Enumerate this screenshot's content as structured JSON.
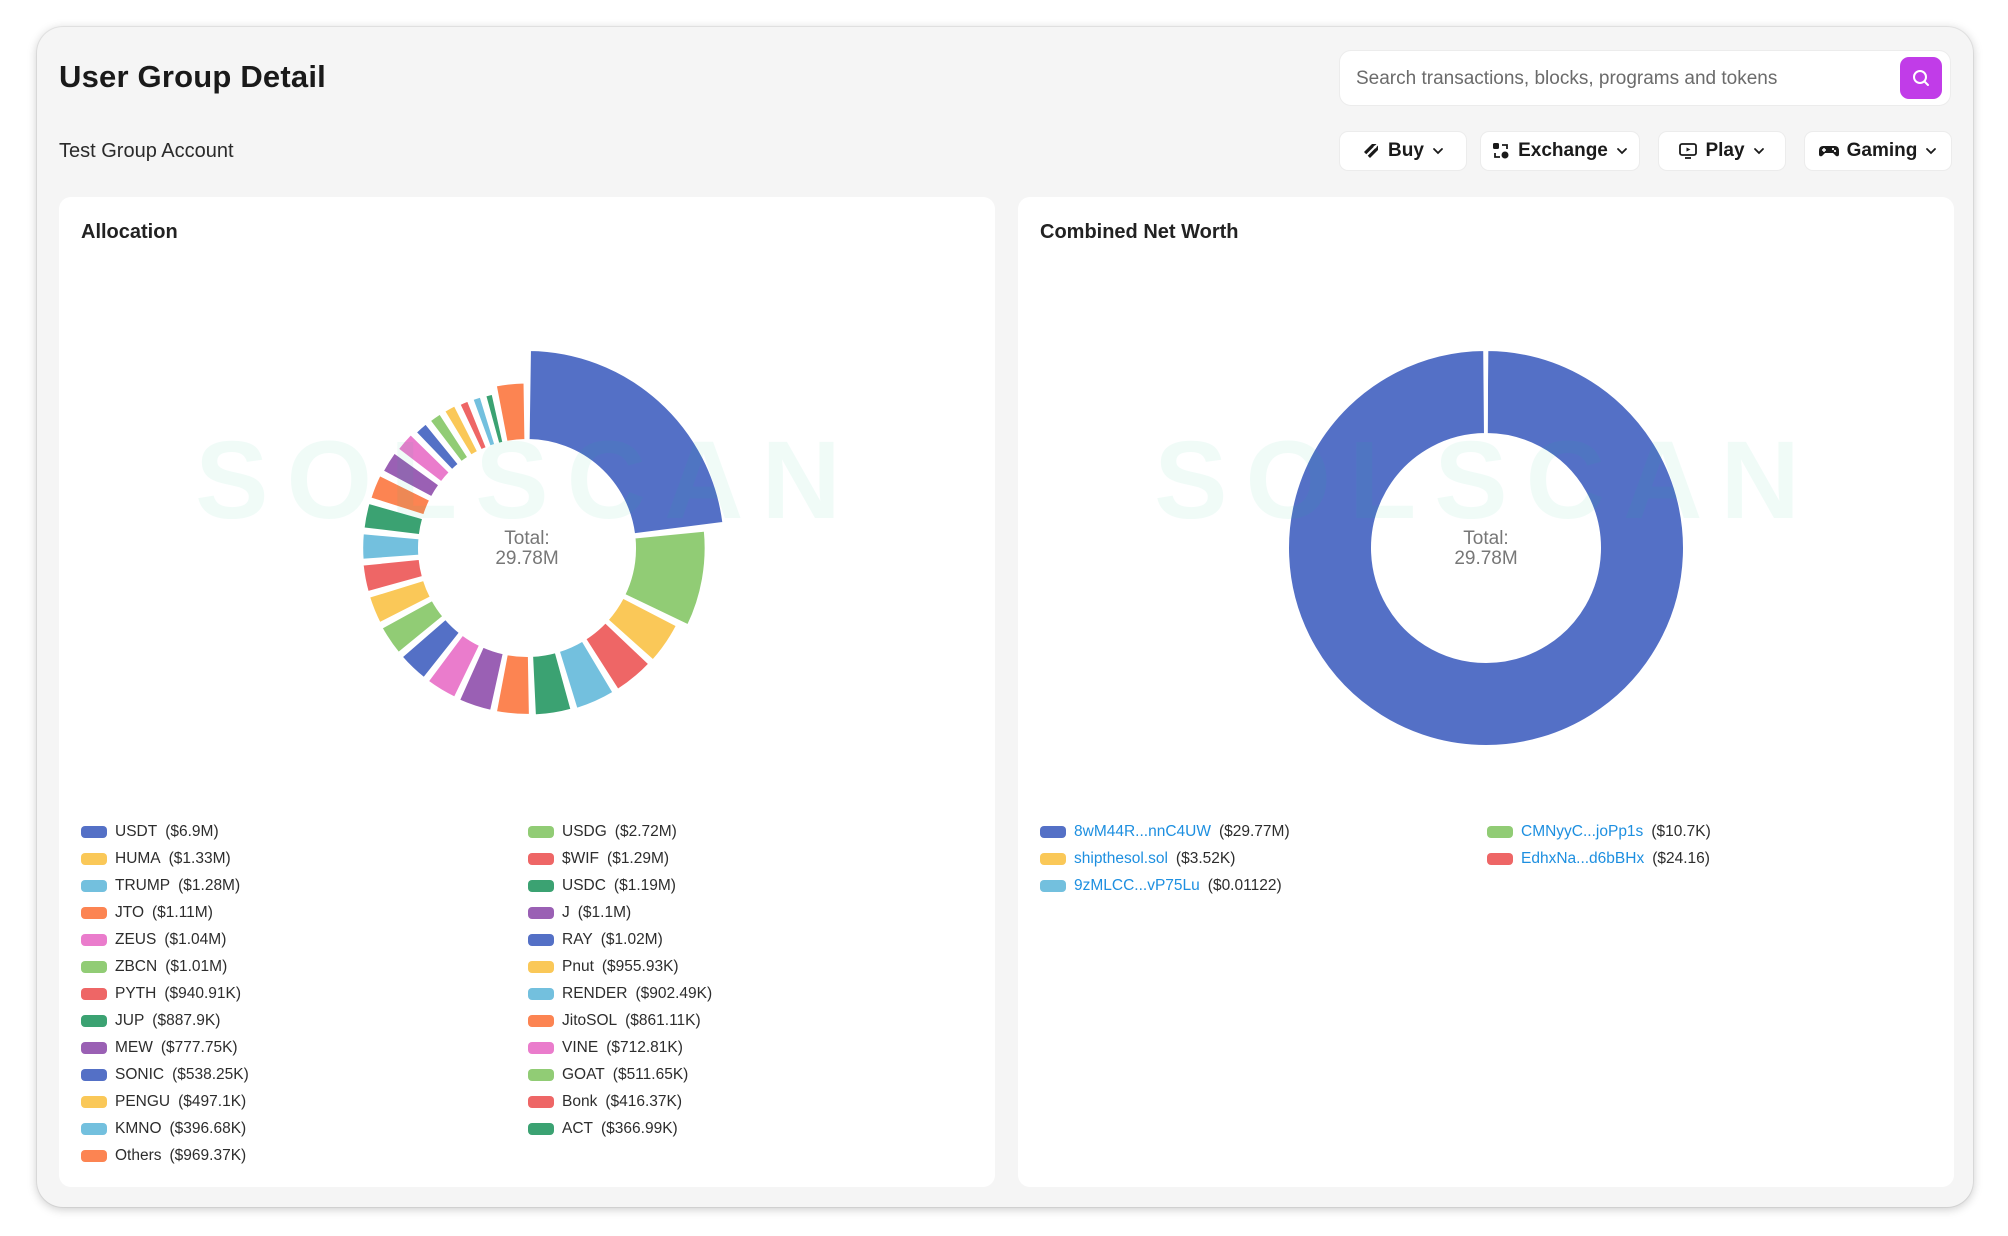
{
  "page": {
    "title": "User Group Detail",
    "subtitle": "Test Group Account"
  },
  "search": {
    "placeholder": "Search transactions, blocks, programs and tokens",
    "icon": "search-icon"
  },
  "toolbar": [
    {
      "label": "Buy",
      "icon": "buy-tag-icon"
    },
    {
      "label": "Exchange",
      "icon": "exchange-icon"
    },
    {
      "label": "Play",
      "icon": "monitor-play-icon"
    },
    {
      "label": "Gaming",
      "icon": "gamepad-icon"
    }
  ],
  "colors": {
    "accent": "#c13ce8",
    "link": "#1d8fe0",
    "palette": [
      "#5470c6",
      "#91cc75",
      "#fac858",
      "#ee6666",
      "#73c0de",
      "#3ba272",
      "#fc8452",
      "#9a60b4",
      "#ea7ccc"
    ]
  },
  "watermark": "SOLSCAN",
  "allocation": {
    "title": "Allocation",
    "center_label": "Total:",
    "center_value": "29.78M",
    "legend": [
      {
        "name": "USDT",
        "value_label": "($6.9M)",
        "color": "#5470c6"
      },
      {
        "name": "USDG",
        "value_label": "($2.72M)",
        "color": "#91cc75"
      },
      {
        "name": "HUMA",
        "value_label": "($1.33M)",
        "color": "#fac858"
      },
      {
        "name": "$WIF",
        "value_label": "($1.29M)",
        "color": "#ee6666"
      },
      {
        "name": "TRUMP",
        "value_label": "($1.28M)",
        "color": "#73c0de"
      },
      {
        "name": "USDC",
        "value_label": "($1.19M)",
        "color": "#3ba272"
      },
      {
        "name": "JTO",
        "value_label": "($1.11M)",
        "color": "#fc8452"
      },
      {
        "name": "J",
        "value_label": "($1.1M)",
        "color": "#9a60b4"
      },
      {
        "name": "ZEUS",
        "value_label": "($1.04M)",
        "color": "#ea7ccc"
      },
      {
        "name": "RAY",
        "value_label": "($1.02M)",
        "color": "#5470c6"
      },
      {
        "name": "ZBCN",
        "value_label": "($1.01M)",
        "color": "#91cc75"
      },
      {
        "name": "Pnut",
        "value_label": "($955.93K)",
        "color": "#fac858"
      },
      {
        "name": "PYTH",
        "value_label": "($940.91K)",
        "color": "#ee6666"
      },
      {
        "name": "RENDER",
        "value_label": "($902.49K)",
        "color": "#73c0de"
      },
      {
        "name": "JUP",
        "value_label": "($887.9K)",
        "color": "#3ba272"
      },
      {
        "name": "JitoSOL",
        "value_label": "($861.11K)",
        "color": "#fc8452"
      },
      {
        "name": "MEW",
        "value_label": "($777.75K)",
        "color": "#9a60b4"
      },
      {
        "name": "VINE",
        "value_label": "($712.81K)",
        "color": "#ea7ccc"
      },
      {
        "name": "SONIC",
        "value_label": "($538.25K)",
        "color": "#5470c6"
      },
      {
        "name": "GOAT",
        "value_label": "($511.65K)",
        "color": "#91cc75"
      },
      {
        "name": "PENGU",
        "value_label": "($497.1K)",
        "color": "#fac858"
      },
      {
        "name": "Bonk",
        "value_label": "($416.37K)",
        "color": "#ee6666"
      },
      {
        "name": "KMNO",
        "value_label": "($396.68K)",
        "color": "#73c0de"
      },
      {
        "name": "ACT",
        "value_label": "($366.99K)",
        "color": "#3ba272"
      },
      {
        "name": "Others",
        "value_label": "($969.37K)",
        "color": "#fc8452"
      }
    ]
  },
  "net_worth": {
    "title": "Combined Net Worth",
    "center_label": "Total:",
    "center_value": "29.78M",
    "legend": [
      {
        "name": "8wM44R...nnC4UW",
        "value_label": "($29.77M)",
        "color": "#5470c6"
      },
      {
        "name": "CMNyyC...joPp1s",
        "value_label": "($10.7K)",
        "color": "#91cc75"
      },
      {
        "name": "shipthesol.sol",
        "value_label": "($3.52K)",
        "color": "#fac858"
      },
      {
        "name": "EdhxNa...d6bBHx",
        "value_label": "($24.16)",
        "color": "#ee6666"
      },
      {
        "name": "9zMLCC...vP75Lu",
        "value_label": "($0.01122)",
        "color": "#73c0de"
      }
    ]
  },
  "chart_data": [
    {
      "type": "pie",
      "title": "Allocation",
      "donut": true,
      "rose": "radius",
      "total_label": "29.78M",
      "legend_placement": "bottom",
      "categories": [
        "USDT",
        "USDG",
        "HUMA",
        "$WIF",
        "TRUMP",
        "USDC",
        "JTO",
        "J",
        "ZEUS",
        "RAY",
        "ZBCN",
        "Pnut",
        "PYTH",
        "RENDER",
        "JUP",
        "JitoSOL",
        "MEW",
        "VINE",
        "SONIC",
        "GOAT",
        "PENGU",
        "Bonk",
        "KMNO",
        "ACT",
        "Others"
      ],
      "values": [
        6900000,
        2720000,
        1330000,
        1290000,
        1280000,
        1190000,
        1110000,
        1100000,
        1040000,
        1020000,
        1010000,
        955930,
        940910,
        902490,
        887900,
        861110,
        777750,
        712810,
        538250,
        511650,
        497100,
        416370,
        396680,
        366990,
        969370
      ]
    },
    {
      "type": "pie",
      "title": "Combined Net Worth",
      "donut": true,
      "total_label": "29.78M",
      "legend_placement": "bottom",
      "categories": [
        "8wM44R...nnC4UW",
        "CMNyyC...joPp1s",
        "shipthesol.sol",
        "EdhxNa...d6bBHx",
        "9zMLCC...vP75Lu"
      ],
      "values": [
        29770000,
        10700,
        3520,
        24.16,
        0.01122
      ]
    }
  ]
}
